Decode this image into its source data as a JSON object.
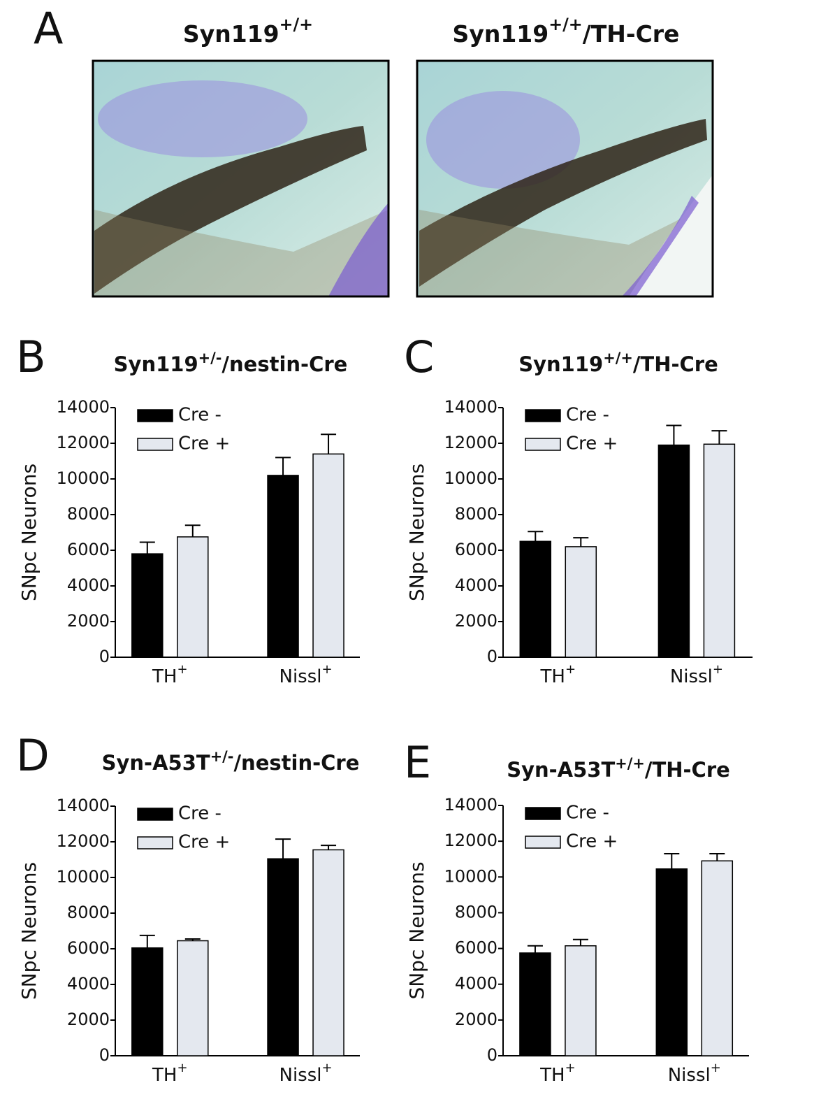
{
  "panel_a": {
    "letter": "A",
    "images": [
      {
        "title": {
          "main": "Syn119",
          "sup": "+/+"
        }
      },
      {
        "title": {
          "main": "Syn119",
          "sup": "+/+",
          "tail": "/TH-Cre"
        }
      }
    ]
  },
  "chart_data": [
    {
      "type": "bar",
      "panel": "B",
      "title": {
        "main": "Syn119",
        "sup": "+/-",
        "tail": "/nestin-Cre"
      },
      "ylabel": "SNpc Neurons",
      "categories": [
        "TH",
        "Nissl"
      ],
      "category_sups": [
        "+",
        "+"
      ],
      "series": [
        {
          "name": "Cre -",
          "color": "#000000",
          "values": [
            5800,
            10200
          ],
          "errors": [
            650,
            1000
          ]
        },
        {
          "name": "Cre +",
          "color": "#e4e8ef",
          "values": [
            6750,
            11400
          ],
          "errors": [
            650,
            1100
          ]
        }
      ],
      "ylim": [
        0,
        14000
      ],
      "yticks": [
        0,
        2000,
        4000,
        6000,
        8000,
        10000,
        12000,
        14000
      ],
      "grid": false
    },
    {
      "type": "bar",
      "panel": "C",
      "title": {
        "main": "Syn119",
        "sup": "+/+",
        "tail": "/TH-Cre"
      },
      "ylabel": "SNpc Neurons",
      "categories": [
        "TH",
        "Nissl"
      ],
      "category_sups": [
        "+",
        "+"
      ],
      "series": [
        {
          "name": "Cre -",
          "color": "#000000",
          "values": [
            6500,
            11900
          ],
          "errors": [
            550,
            1100
          ]
        },
        {
          "name": "Cre +",
          "color": "#e4e8ef",
          "values": [
            6200,
            11950
          ],
          "errors": [
            500,
            750
          ]
        }
      ],
      "ylim": [
        0,
        14000
      ],
      "yticks": [
        0,
        2000,
        4000,
        6000,
        8000,
        10000,
        12000,
        14000
      ],
      "grid": false
    },
    {
      "type": "bar",
      "panel": "D",
      "title": {
        "main": "Syn-A53T",
        "sup": "+/-",
        "tail": "/nestin-Cre"
      },
      "ylabel": "SNpc Neurons",
      "categories": [
        "TH",
        "Nissl"
      ],
      "category_sups": [
        "+",
        "+"
      ],
      "series": [
        {
          "name": "Cre -",
          "color": "#000000",
          "values": [
            6050,
            11050
          ],
          "errors": [
            700,
            1100
          ]
        },
        {
          "name": "Cre +",
          "color": "#e4e8ef",
          "values": [
            6450,
            11550
          ],
          "errors": [
            100,
            250
          ]
        }
      ],
      "ylim": [
        0,
        14000
      ],
      "yticks": [
        0,
        2000,
        4000,
        6000,
        8000,
        10000,
        12000,
        14000
      ],
      "grid": false
    },
    {
      "type": "bar",
      "panel": "E",
      "title": {
        "main": "Syn-A53T",
        "sup": "+/+",
        "tail": "/TH-Cre"
      },
      "ylabel": "SNpc Neurons",
      "categories": [
        "TH",
        "Nissl"
      ],
      "category_sups": [
        "+",
        "+"
      ],
      "series": [
        {
          "name": "Cre -",
          "color": "#000000",
          "values": [
            5750,
            10450
          ],
          "errors": [
            400,
            850
          ]
        },
        {
          "name": "Cre +",
          "color": "#e4e8ef",
          "values": [
            6150,
            10900
          ],
          "errors": [
            350,
            400
          ]
        }
      ],
      "ylim": [
        0,
        14000
      ],
      "yticks": [
        0,
        2000,
        4000,
        6000,
        8000,
        10000,
        12000,
        14000
      ],
      "grid": false
    }
  ]
}
